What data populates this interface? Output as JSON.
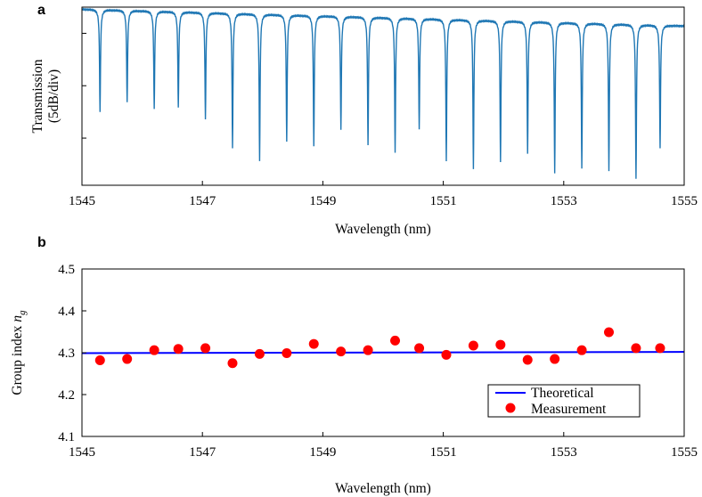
{
  "panels": {
    "a": {
      "label": "a"
    },
    "b": {
      "label": "b"
    }
  },
  "colors": {
    "spectrum": "#1f77b4",
    "theory": "#0000ff",
    "measurement": "#ff0000"
  },
  "chart_data": [
    {
      "type": "line",
      "panel": "a",
      "xlabel": "Wavelength (nm)",
      "ylabel_line1": "Transmission",
      "ylabel_line2": "(5dB/div)",
      "xlim": [
        1545,
        1555
      ],
      "x_ticks": [
        "1545",
        "1547",
        "1549",
        "1551",
        "1553",
        "1555"
      ],
      "y_unit_dB_per_div": 5,
      "ylim_dB": [
        -17,
        0
      ],
      "y_divisions": [
        -2.5,
        -7.5,
        -12.5
      ],
      "baseline_start_dB": -0.2,
      "baseline_end_dB": -1.8,
      "resonances": [
        {
          "x": 1545.3,
          "depth_dB": -9.8
        },
        {
          "x": 1545.75,
          "depth_dB": -8.9
        },
        {
          "x": 1546.2,
          "depth_dB": -9.5
        },
        {
          "x": 1546.6,
          "depth_dB": -9.4
        },
        {
          "x": 1547.05,
          "depth_dB": -10.5
        },
        {
          "x": 1547.5,
          "depth_dB": -13.2
        },
        {
          "x": 1547.95,
          "depth_dB": -14.4
        },
        {
          "x": 1548.4,
          "depth_dB": -12.6
        },
        {
          "x": 1548.85,
          "depth_dB": -13.1
        },
        {
          "x": 1549.3,
          "depth_dB": -11.5
        },
        {
          "x": 1549.75,
          "depth_dB": -12.9
        },
        {
          "x": 1550.2,
          "depth_dB": -13.6
        },
        {
          "x": 1550.6,
          "depth_dB": -11.4
        },
        {
          "x": 1551.05,
          "depth_dB": -14.4
        },
        {
          "x": 1551.5,
          "depth_dB": -15.2
        },
        {
          "x": 1551.95,
          "depth_dB": -14.6
        },
        {
          "x": 1552.4,
          "depth_dB": -13.8
        },
        {
          "x": 1552.85,
          "depth_dB": -15.6
        },
        {
          "x": 1553.3,
          "depth_dB": -15.1
        },
        {
          "x": 1553.75,
          "depth_dB": -15.4
        },
        {
          "x": 1554.2,
          "depth_dB": -16.2
        },
        {
          "x": 1554.6,
          "depth_dB": -13.2
        }
      ]
    },
    {
      "type": "scatter",
      "panel": "b",
      "xlabel": "Wavelength (nm)",
      "ylabel": "Group index",
      "ylabel_symbol": "n",
      "ylabel_subscript": "g",
      "xlim": [
        1545,
        1555
      ],
      "ylim": [
        4.1,
        4.5
      ],
      "x_ticks": [
        "1545",
        "1547",
        "1549",
        "1551",
        "1553",
        "1555"
      ],
      "y_ticks": [
        "4.1",
        "4.2",
        "4.3",
        "4.4",
        "4.5"
      ],
      "legend": {
        "position": "lower-right",
        "entries": [
          "Theoretical",
          "Measurement"
        ]
      },
      "series": [
        {
          "name": "Theoretical",
          "kind": "line",
          "x": [
            1545,
            1555
          ],
          "y": [
            4.299,
            4.302
          ]
        },
        {
          "name": "Measurement",
          "kind": "points",
          "x": [
            1545.3,
            1545.75,
            1546.2,
            1546.6,
            1547.05,
            1547.5,
            1547.95,
            1548.4,
            1548.85,
            1549.3,
            1549.75,
            1550.2,
            1550.6,
            1551.05,
            1551.5,
            1551.95,
            1552.4,
            1552.85,
            1553.3,
            1553.75,
            1554.2,
            1554.6
          ],
          "y": [
            4.282,
            4.285,
            4.306,
            4.309,
            4.311,
            4.275,
            4.297,
            4.299,
            4.321,
            4.303,
            4.306,
            4.329,
            4.311,
            4.295,
            4.317,
            4.319,
            4.283,
            4.285,
            4.306,
            4.349,
            4.311,
            4.311
          ]
        }
      ]
    }
  ]
}
